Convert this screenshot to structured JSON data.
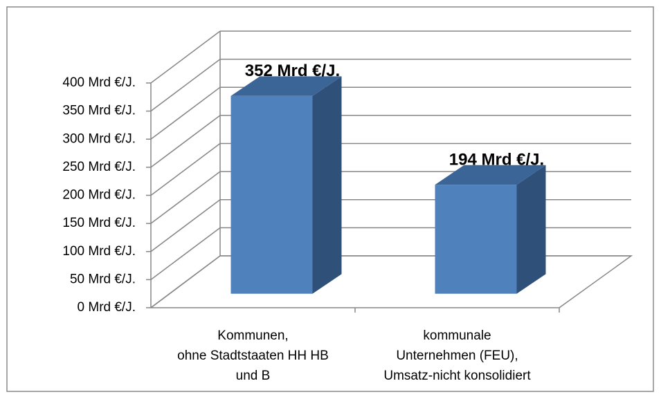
{
  "chart_data": {
    "type": "bar3d",
    "categories": [
      "Kommunen,\nohne Stadtstaaten HH HB\nund B",
      "kommunale\nUnternehmen (FEU),\nUmsatz-nicht konsolidiert"
    ],
    "values": [
      352,
      194
    ],
    "value_labels": [
      "352 Mrd €/J.",
      "194 Mrd €/J."
    ],
    "color": "#4f81bd",
    "ylim": [
      0,
      400
    ],
    "yticks": [
      {
        "value": 0,
        "label": "0 Mrd €/J."
      },
      {
        "value": 50,
        "label": "50 Mrd €/J."
      },
      {
        "value": 100,
        "label": "100 Mrd €/J."
      },
      {
        "value": 150,
        "label": "150 Mrd €/J."
      },
      {
        "value": 200,
        "label": "200 Mrd €/J."
      },
      {
        "value": 250,
        "label": "250 Mrd €/J."
      },
      {
        "value": 300,
        "label": "300 Mrd €/J."
      },
      {
        "value": 350,
        "label": "350 Mrd €/J."
      },
      {
        "value": 400,
        "label": "400 Mrd €/J."
      }
    ],
    "grid": true
  }
}
